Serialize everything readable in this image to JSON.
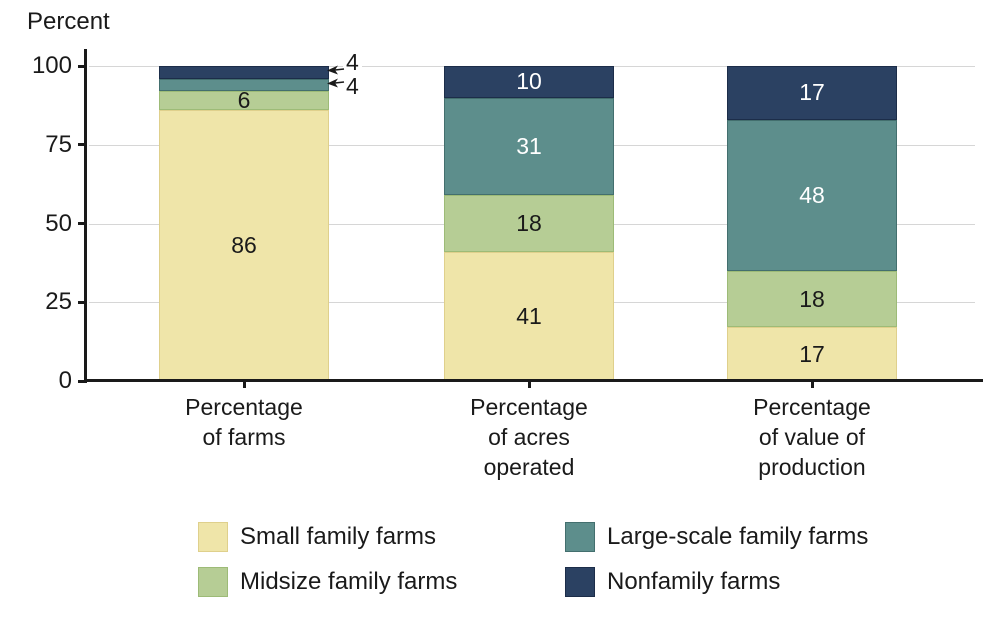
{
  "chart_data": {
    "type": "bar",
    "variant": "stacked-percent",
    "title": "Percent",
    "categories": [
      "Percentage\nof farms",
      "Percentage\nof acres\noperated",
      "Percentage\nof value of\nproduction"
    ],
    "series": [
      {
        "name": "Small family farms",
        "color": "#EFE5A9",
        "border_color": "#DFD08C",
        "label_color": "#1a1a1a",
        "values": [
          86,
          41,
          17
        ]
      },
      {
        "name": "Midsize family farms",
        "color": "#B6CD95",
        "border_color": "#9DBB77",
        "label_color": "#1a1a1a",
        "values": [
          6,
          18,
          18
        ]
      },
      {
        "name": "Large-scale family farms",
        "color": "#5D8E8C",
        "border_color": "#436F6E",
        "label_color": "#ffffff",
        "values": [
          4,
          31,
          48
        ]
      },
      {
        "name": "Nonfamily farms",
        "color": "#2B4162",
        "border_color": "#1C2D49",
        "label_color": "#ffffff",
        "values": [
          4,
          10,
          17
        ]
      }
    ],
    "ylim": [
      0,
      100
    ],
    "y_ticks": [
      "0",
      "25",
      "50",
      "75",
      "100"
    ],
    "ylabel": "Percent",
    "xlabel": "",
    "grid": true,
    "legend_position": "bottom",
    "legend_order": [
      0,
      2,
      1,
      3
    ],
    "outside_labels": [
      {
        "category_index": 0,
        "series_index": 3,
        "text": "4"
      },
      {
        "category_index": 0,
        "series_index": 2,
        "text": "4"
      }
    ],
    "colors": {
      "axis": "#1a1a1a",
      "gridline": "#d6d6d6",
      "background": "#ffffff"
    }
  }
}
